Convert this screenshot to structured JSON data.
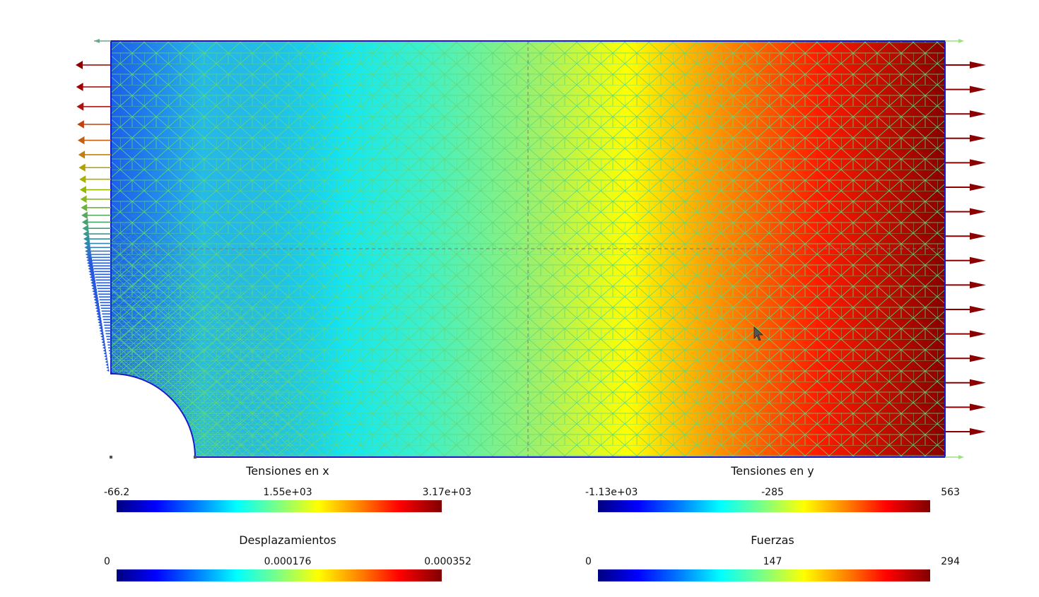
{
  "viewport": {
    "colormap": [
      "#00007f",
      "#0000ff",
      "#0080ff",
      "#00ffff",
      "#80ff80",
      "#ffff00",
      "#ff8000",
      "#ff0000",
      "#7f0000"
    ],
    "mesh_color": "#5fd87a",
    "boundary_color": "#1a1acc",
    "load_arrow_color": "#8b0000",
    "symmetry_line_color": "#888888"
  },
  "legends": {
    "sx": {
      "title": "Tensiones en x",
      "min": "-66.2",
      "mid": "1.55e+03",
      "max": "3.17e+03"
    },
    "sy": {
      "title": "Tensiones en y",
      "min": "-1.13e+03",
      "mid": "-285",
      "max": "563"
    },
    "disp": {
      "title": "Desplazamientos",
      "min": "0",
      "mid": "0.000176",
      "max": "0.000352"
    },
    "force": {
      "title": "Fuerzas",
      "min": "0",
      "mid": "147",
      "max": "294"
    }
  }
}
